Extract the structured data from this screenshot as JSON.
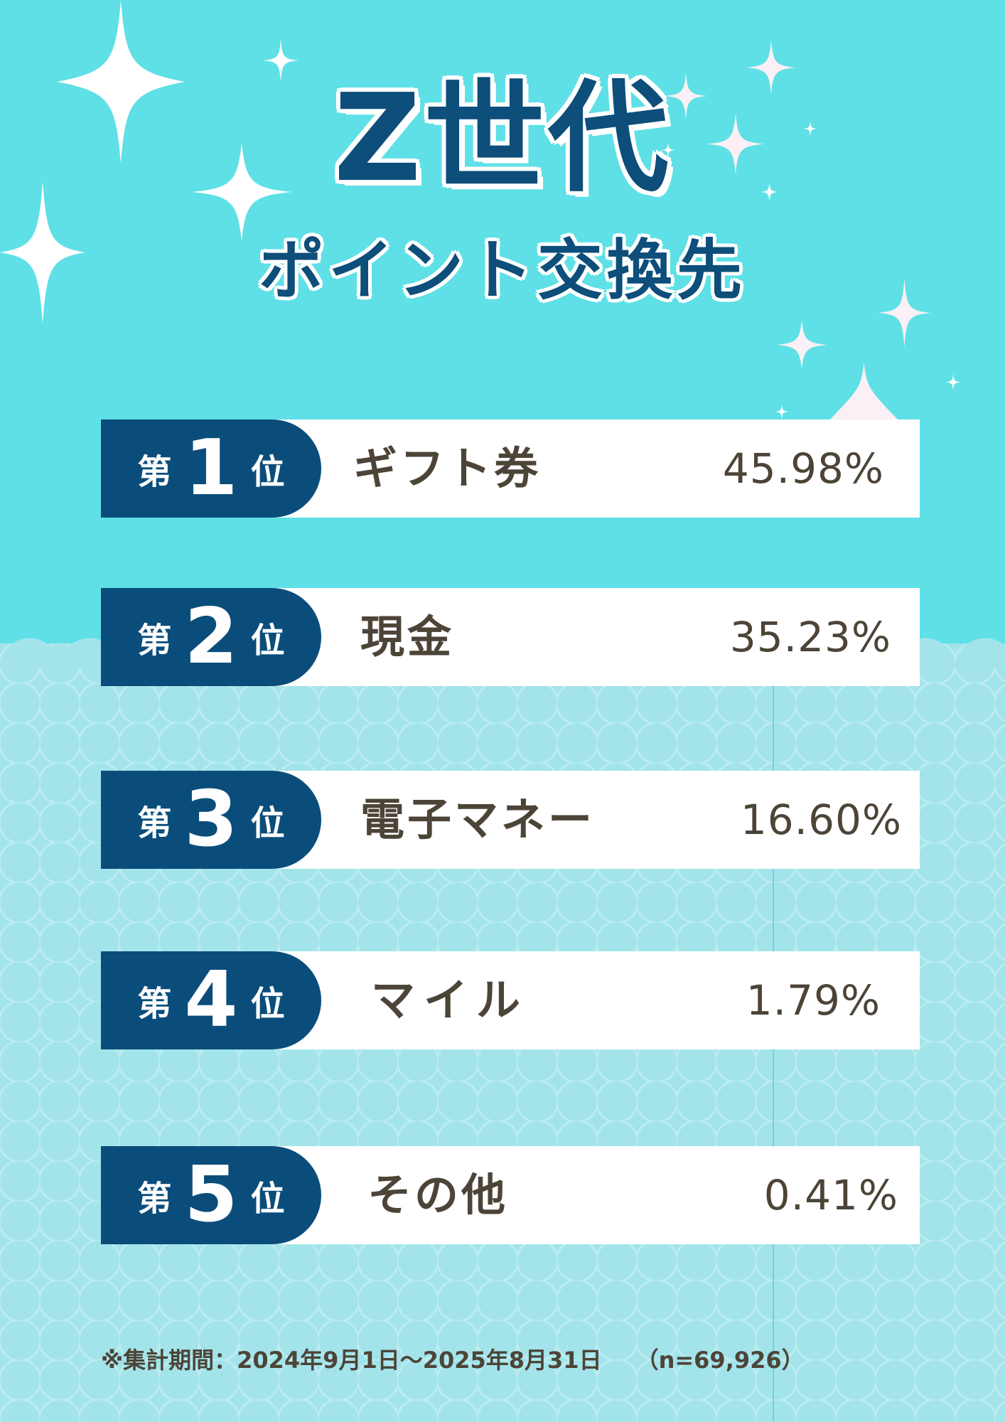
{
  "title": {
    "main": "Z世代",
    "sub": "ポイント交換先"
  },
  "rank_prefix": "第",
  "rank_suffix": "位",
  "rankings": [
    {
      "rank": "1",
      "name": "ギフト券",
      "percent": "45.98%"
    },
    {
      "rank": "2",
      "name": "現金",
      "percent": "35.23%"
    },
    {
      "rank": "3",
      "name": "電子マネー",
      "percent": "16.60%"
    },
    {
      "rank": "4",
      "name": "マイル",
      "percent": "1.79%"
    },
    {
      "rank": "5",
      "name": "その他",
      "percent": "0.41%"
    }
  ],
  "footnote": "※集計期間：2024年9月1日～2025年8月31日　　（n=69,926）",
  "colors": {
    "background_top": "#5ee0e6",
    "background_bottom": "#a2e4ea",
    "badge": "#0a4d7b",
    "title": "#0d4e7a",
    "text": "#4d4438"
  }
}
